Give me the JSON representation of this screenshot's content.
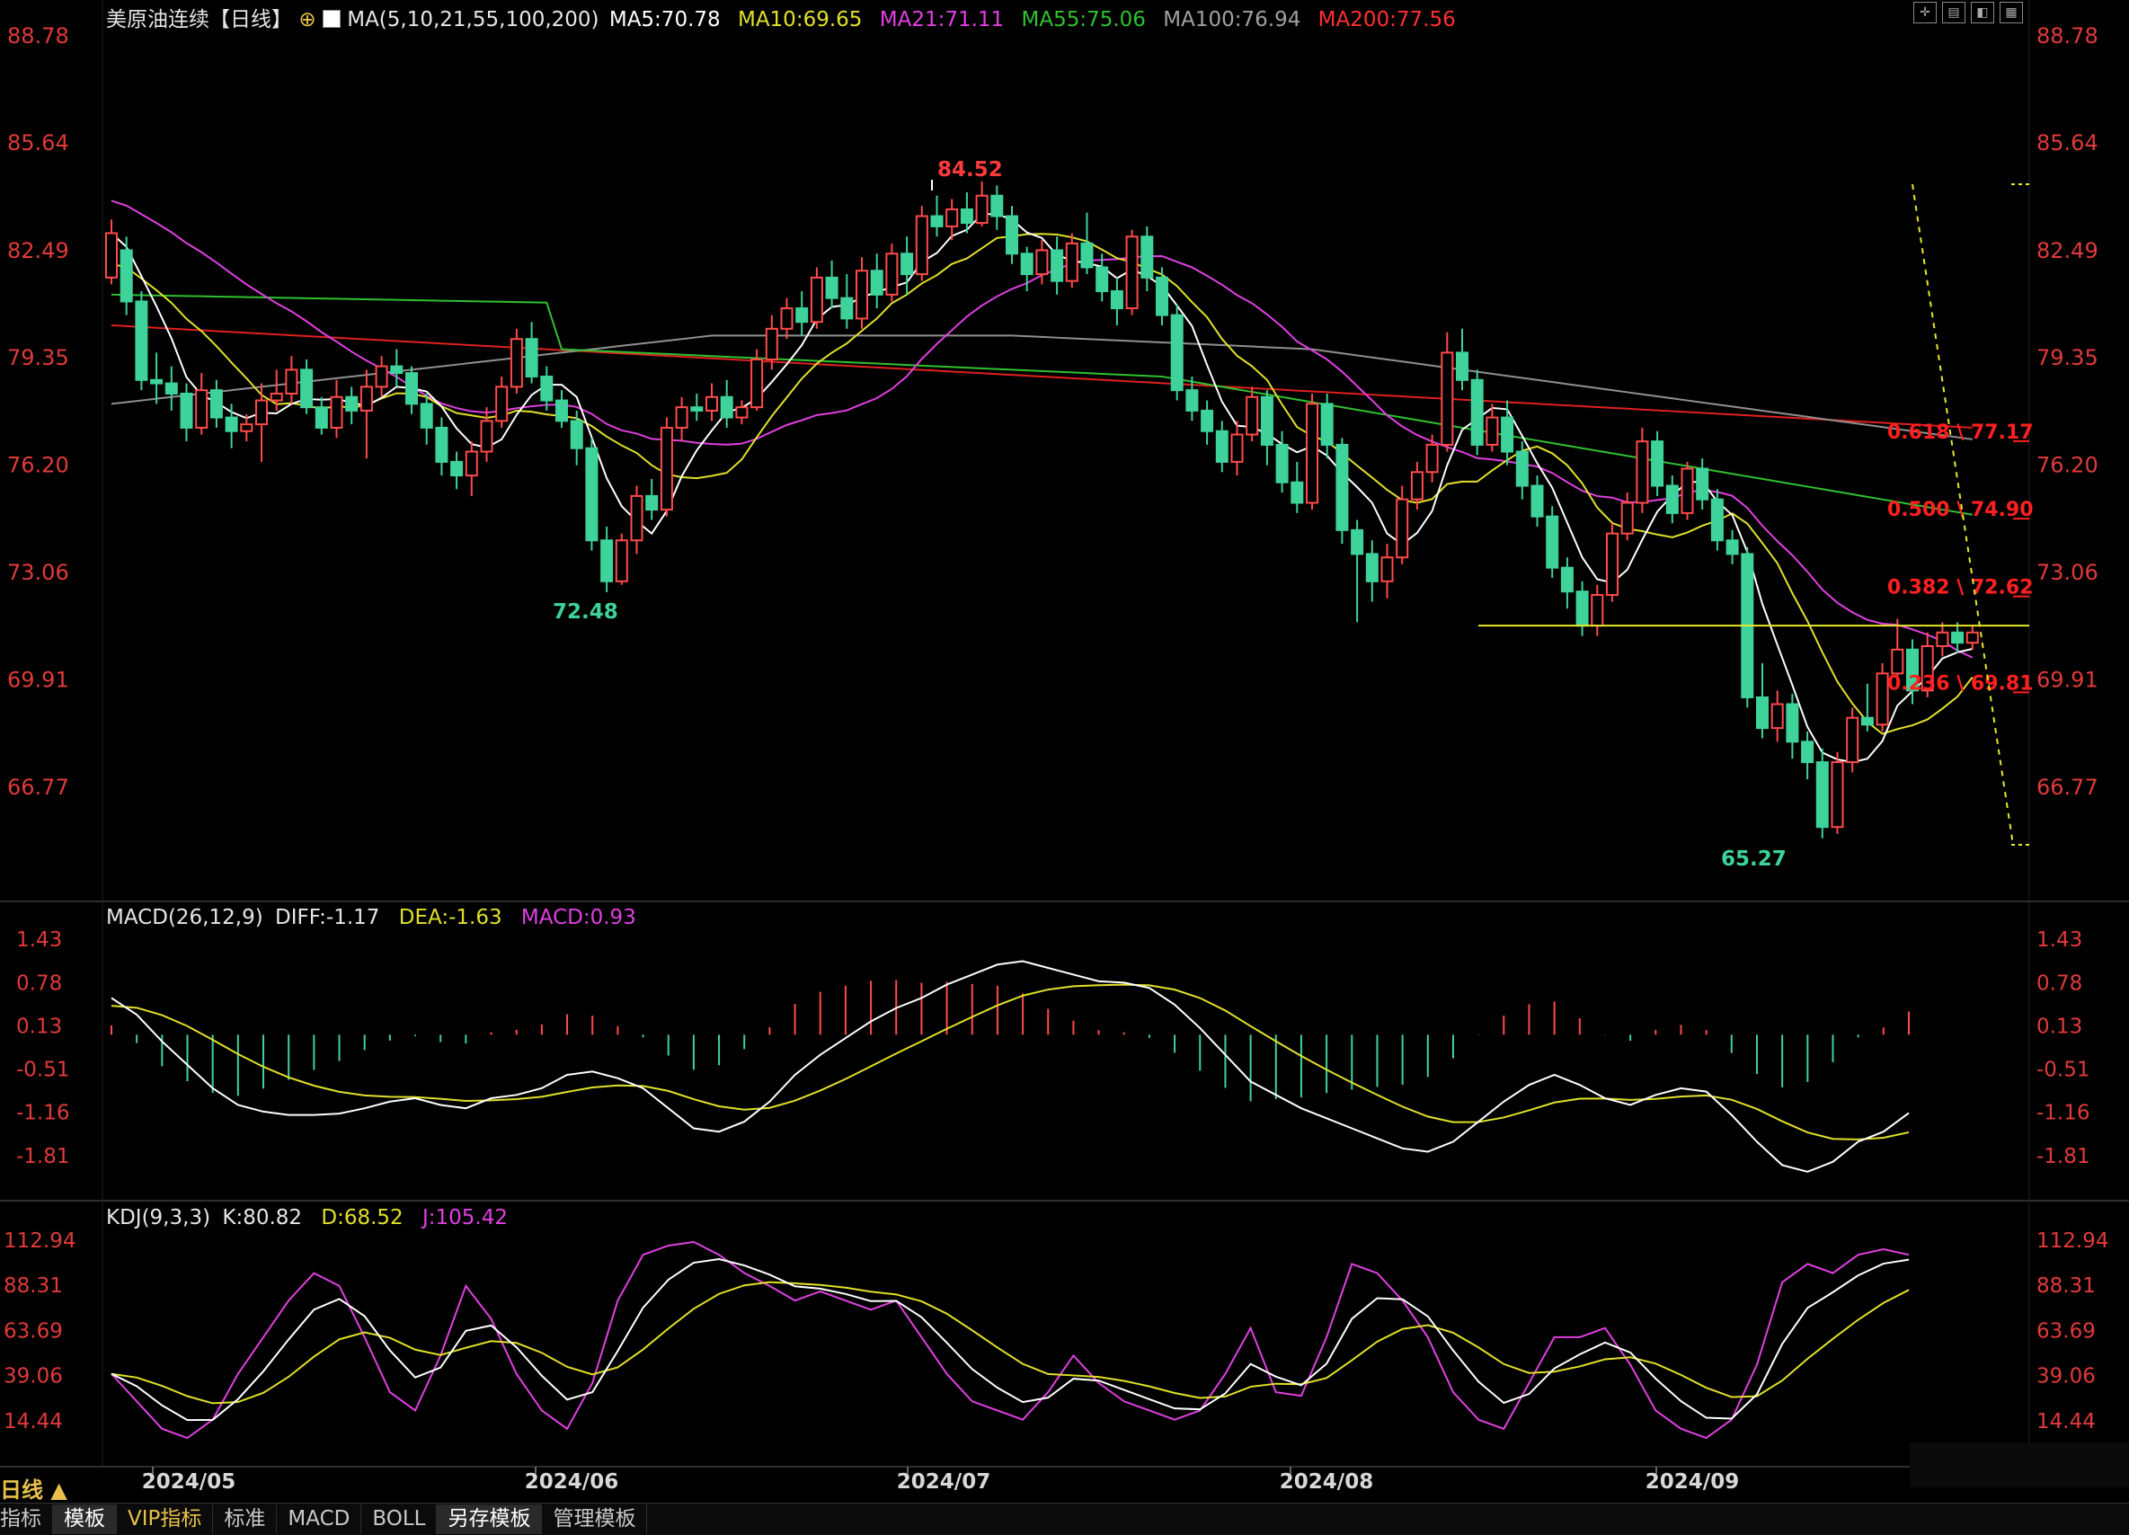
{
  "header": {
    "title": "美原油连续【日线】",
    "ma_label": "MA(5,10,21,55,100,200)",
    "ma5": "MA5:70.78",
    "ma10": "MA10:69.65",
    "ma21": "MA21:71.11",
    "ma55": "MA55:75.06",
    "ma100": "MA100:76.94",
    "ma200": "MA200:77.56"
  },
  "colors": {
    "up": "#ff4a4a",
    "down": "#3ed39a",
    "ma5": "#ffffff",
    "ma10": "#e0e02a",
    "ma21": "#e040e0",
    "ma55": "#30c030",
    "ma100": "#909090",
    "ma200": "#e02020",
    "axis_text": "#e03a3a",
    "grid": "#2a2a2a"
  },
  "price_axis": {
    "ticks": [
      "88.78",
      "85.64",
      "82.49",
      "79.35",
      "76.20",
      "73.06",
      "69.91",
      "66.77"
    ],
    "values": [
      88.78,
      85.64,
      82.49,
      79.35,
      76.2,
      73.06,
      69.91,
      66.77
    ]
  },
  "annotations": {
    "high_label": "84.52",
    "low1_label": "72.48",
    "low2_label": "65.27",
    "support_level": 71.5
  },
  "fibonacci": [
    {
      "label": "0.618 \\ 77.17",
      "value": 77.17
    },
    {
      "label": "0.500 \\ 74.90",
      "value": 74.9
    },
    {
      "label": "0.382 \\ 72.62",
      "value": 72.62
    },
    {
      "label": "0.236 \\ 69.81",
      "value": 69.81
    }
  ],
  "macd": {
    "title": "MACD(26,12,9)",
    "diff": "DIFF:-1.17",
    "dea": "DEA:-1.63",
    "macd": "MACD:0.93",
    "ticks": [
      "1.43",
      "0.78",
      "0.13",
      "-0.51",
      "-1.16",
      "-1.81"
    ],
    "values": [
      1.43,
      0.78,
      0.13,
      -0.51,
      -1.16,
      -1.81
    ]
  },
  "kdj": {
    "title": "KDJ(9,3,3)",
    "k": "K:80.82",
    "d": "D:68.52",
    "j": "J:105.42",
    "ticks": [
      "112.94",
      "88.31",
      "63.69",
      "39.06",
      "14.44"
    ],
    "values": [
      112.94,
      88.31,
      63.69,
      39.06,
      14.44
    ]
  },
  "dates": [
    "2024/05",
    "2024/06",
    "2024/07",
    "2024/08",
    "2024/09"
  ],
  "period_label": "日线 ▲",
  "tabs": [
    "指标",
    "模板",
    "VIP指标",
    "标准",
    "MACD",
    "BOLL",
    "另存模板",
    "管理模板"
  ],
  "chart_data": {
    "type": "candlestick",
    "candles": [
      [
        81.7,
        83.0,
        83.4,
        81.5
      ],
      [
        82.5,
        81.0,
        82.9,
        80.6
      ],
      [
        81.0,
        78.7,
        81.3,
        78.4
      ],
      [
        78.7,
        78.6,
        79.5,
        78.0
      ],
      [
        78.6,
        78.3,
        79.1,
        77.8
      ],
      [
        78.3,
        77.3,
        78.6,
        76.9
      ],
      [
        77.3,
        78.4,
        78.9,
        77.1
      ],
      [
        78.4,
        77.6,
        78.7,
        77.3
      ],
      [
        77.6,
        77.2,
        78.0,
        76.7
      ],
      [
        77.2,
        77.4,
        77.7,
        76.9
      ],
      [
        77.4,
        78.1,
        78.6,
        76.3
      ],
      [
        78.1,
        78.3,
        79.0,
        77.8
      ],
      [
        78.3,
        79.0,
        79.4,
        78.0
      ],
      [
        79.0,
        77.9,
        79.3,
        77.7
      ],
      [
        77.9,
        77.3,
        78.2,
        77.1
      ],
      [
        77.3,
        78.2,
        78.7,
        77.0
      ],
      [
        78.2,
        77.8,
        78.5,
        77.4
      ],
      [
        77.8,
        78.5,
        79.0,
        76.4
      ],
      [
        78.5,
        79.1,
        79.4,
        78.2
      ],
      [
        79.1,
        78.9,
        79.6,
        78.5
      ],
      [
        78.9,
        78.0,
        79.1,
        77.7
      ],
      [
        78.0,
        77.3,
        78.3,
        76.8
      ],
      [
        77.3,
        76.3,
        77.6,
        75.9
      ],
      [
        76.3,
        75.9,
        76.6,
        75.5
      ],
      [
        75.9,
        76.6,
        76.9,
        75.3
      ],
      [
        76.6,
        77.5,
        77.9,
        76.3
      ],
      [
        77.5,
        78.5,
        78.8,
        77.3
      ],
      [
        78.5,
        79.9,
        80.2,
        78.3
      ],
      [
        79.9,
        78.8,
        80.4,
        78.6
      ],
      [
        78.8,
        78.1,
        79.1,
        77.8
      ],
      [
        78.1,
        77.5,
        78.4,
        77.3
      ],
      [
        77.5,
        76.7,
        77.8,
        76.2
      ],
      [
        76.7,
        74.0,
        77.0,
        73.7
      ],
      [
        74.0,
        72.8,
        74.4,
        72.48
      ],
      [
        72.8,
        74.0,
        74.2,
        72.7
      ],
      [
        74.0,
        75.3,
        75.6,
        73.6
      ],
      [
        75.3,
        74.9,
        75.8,
        74.6
      ],
      [
        74.9,
        77.3,
        77.6,
        74.7
      ],
      [
        77.3,
        77.9,
        78.2,
        76.9
      ],
      [
        77.9,
        77.8,
        78.3,
        77.5
      ],
      [
        77.8,
        78.2,
        78.6,
        77.5
      ],
      [
        78.2,
        77.6,
        78.7,
        77.3
      ],
      [
        77.6,
        77.9,
        78.1,
        77.4
      ],
      [
        77.9,
        79.3,
        79.6,
        77.8
      ],
      [
        79.3,
        80.2,
        80.6,
        79.0
      ],
      [
        80.2,
        80.8,
        81.1,
        79.9
      ],
      [
        80.8,
        80.4,
        81.3,
        80.0
      ],
      [
        80.4,
        81.7,
        82.0,
        80.2
      ],
      [
        81.7,
        81.1,
        82.2,
        80.8
      ],
      [
        81.1,
        80.5,
        81.8,
        80.2
      ],
      [
        80.5,
        81.9,
        82.3,
        80.2
      ],
      [
        81.9,
        81.2,
        82.4,
        80.8
      ],
      [
        81.2,
        82.4,
        82.7,
        81.0
      ],
      [
        82.4,
        81.8,
        82.9,
        81.2
      ],
      [
        81.8,
        83.5,
        83.8,
        81.6
      ],
      [
        83.5,
        83.2,
        84.1,
        82.9
      ],
      [
        83.2,
        83.7,
        84.0,
        82.8
      ],
      [
        83.7,
        83.3,
        84.2,
        83.0
      ],
      [
        83.3,
        84.1,
        84.52,
        83.2
      ],
      [
        84.1,
        83.5,
        84.4,
        83.1
      ],
      [
        83.5,
        82.4,
        83.8,
        82.1
      ],
      [
        82.4,
        81.8,
        82.6,
        81.3
      ],
      [
        81.8,
        82.5,
        82.8,
        81.5
      ],
      [
        82.5,
        81.6,
        82.9,
        81.2
      ],
      [
        81.6,
        82.7,
        83.0,
        81.4
      ],
      [
        82.7,
        82.0,
        83.6,
        81.8
      ],
      [
        82.0,
        81.3,
        82.4,
        81.0
      ],
      [
        81.3,
        80.8,
        81.7,
        80.3
      ],
      [
        80.8,
        82.9,
        83.1,
        80.6
      ],
      [
        82.9,
        81.7,
        83.2,
        81.3
      ],
      [
        81.7,
        80.6,
        82.0,
        80.3
      ],
      [
        80.6,
        78.4,
        80.9,
        78.1
      ],
      [
        78.4,
        77.8,
        78.8,
        77.5
      ],
      [
        77.8,
        77.2,
        78.1,
        76.8
      ],
      [
        77.2,
        76.3,
        77.5,
        76.0
      ],
      [
        76.3,
        77.1,
        77.5,
        75.9
      ],
      [
        77.1,
        78.2,
        78.5,
        76.9
      ],
      [
        78.2,
        76.8,
        78.4,
        76.2
      ],
      [
        76.8,
        75.7,
        77.2,
        75.4
      ],
      [
        75.7,
        75.1,
        76.3,
        74.8
      ],
      [
        75.1,
        78.0,
        78.3,
        74.9
      ],
      [
        78.0,
        76.8,
        78.3,
        76.4
      ],
      [
        76.8,
        74.3,
        77.0,
        73.9
      ],
      [
        74.3,
        73.6,
        74.6,
        71.6
      ],
      [
        73.6,
        72.8,
        74.0,
        72.2
      ],
      [
        72.8,
        73.5,
        73.9,
        72.3
      ],
      [
        73.5,
        75.2,
        75.6,
        73.3
      ],
      [
        75.2,
        76.0,
        76.3,
        74.9
      ],
      [
        76.0,
        76.8,
        77.1,
        75.7
      ],
      [
        76.8,
        79.5,
        80.1,
        76.6
      ],
      [
        79.5,
        78.7,
        80.2,
        78.4
      ],
      [
        78.7,
        76.8,
        79.0,
        76.5
      ],
      [
        76.8,
        77.6,
        78.0,
        76.6
      ],
      [
        77.6,
        76.6,
        78.1,
        76.2
      ],
      [
        76.6,
        75.6,
        76.9,
        75.2
      ],
      [
        75.6,
        74.7,
        75.9,
        74.4
      ],
      [
        74.7,
        73.2,
        75.0,
        72.9
      ],
      [
        73.2,
        72.5,
        73.5,
        72.0
      ],
      [
        72.5,
        71.5,
        72.8,
        71.2
      ],
      [
        71.5,
        72.4,
        72.7,
        71.2
      ],
      [
        72.4,
        74.2,
        74.5,
        72.2
      ],
      [
        74.2,
        75.1,
        75.4,
        74.0
      ],
      [
        75.1,
        76.9,
        77.3,
        74.8
      ],
      [
        76.9,
        75.6,
        77.2,
        75.3
      ],
      [
        75.6,
        74.8,
        75.9,
        74.5
      ],
      [
        74.8,
        76.1,
        76.3,
        74.6
      ],
      [
        76.1,
        75.2,
        76.4,
        74.9
      ],
      [
        75.2,
        74.0,
        75.5,
        73.7
      ],
      [
        74.0,
        73.6,
        74.3,
        73.3
      ],
      [
        73.6,
        69.4,
        73.8,
        69.1
      ],
      [
        69.4,
        68.5,
        70.4,
        68.2
      ],
      [
        68.5,
        69.2,
        69.6,
        68.1
      ],
      [
        69.2,
        68.1,
        69.5,
        67.6
      ],
      [
        68.1,
        67.5,
        68.4,
        67.0
      ],
      [
        67.5,
        65.6,
        67.9,
        65.27
      ],
      [
        65.6,
        67.5,
        67.8,
        65.4
      ],
      [
        67.5,
        68.8,
        69.1,
        67.2
      ],
      [
        68.8,
        68.6,
        69.8,
        68.4
      ],
      [
        68.6,
        70.1,
        70.4,
        68.4
      ],
      [
        70.1,
        70.8,
        71.7,
        69.9
      ],
      [
        70.8,
        69.6,
        71.1,
        69.2
      ],
      [
        69.6,
        70.9,
        71.3,
        69.4
      ],
      [
        70.9,
        71.3,
        71.6,
        70.6
      ],
      [
        71.3,
        71.0,
        71.6,
        70.7
      ],
      [
        71.0,
        71.3,
        71.5,
        70.8
      ]
    ]
  }
}
